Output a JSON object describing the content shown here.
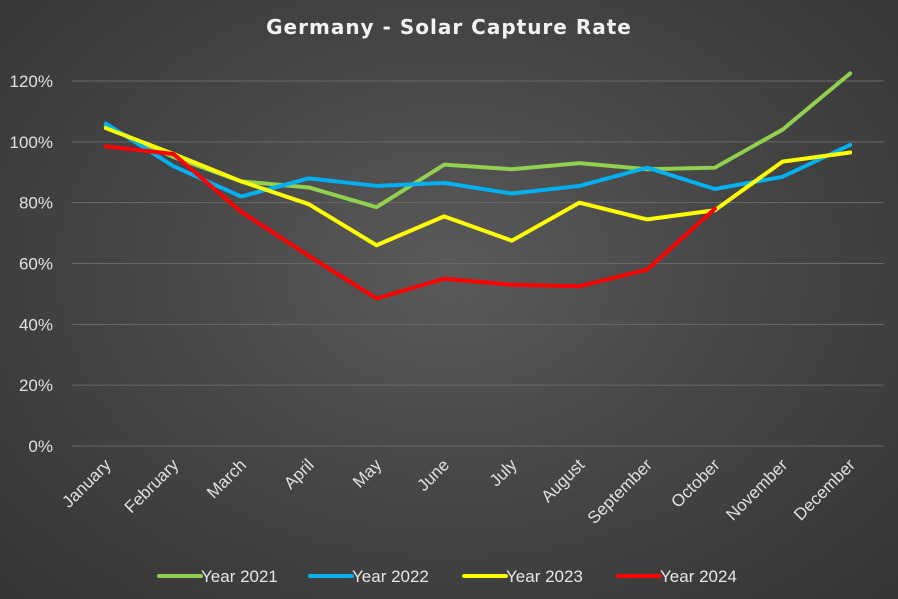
{
  "chart_data": {
    "type": "line",
    "title": "Germany - Solar Capture Rate",
    "xlabel": "",
    "ylabel": "",
    "ylim": [
      0,
      1.2
    ],
    "yticks": [
      0,
      0.2,
      0.4,
      0.6,
      0.8,
      1.0,
      1.2
    ],
    "ytick_labels": [
      "0%",
      "20%",
      "40%",
      "60%",
      "80%",
      "100%",
      "120%"
    ],
    "categories": [
      "January",
      "February",
      "March",
      "April",
      "May",
      "June",
      "July",
      "August",
      "September",
      "October",
      "November",
      "December"
    ],
    "grid": true,
    "legend_position": "bottom",
    "series": [
      {
        "name": "Year 2021",
        "color": "#92d050",
        "values": [
          1.05,
          0.95,
          0.87,
          0.85,
          0.785,
          0.925,
          0.91,
          0.93,
          0.91,
          0.915,
          1.04,
          1.225
        ]
      },
      {
        "name": "Year 2022",
        "color": "#00b0f0",
        "values": [
          1.06,
          0.92,
          0.82,
          0.88,
          0.855,
          0.865,
          0.83,
          0.855,
          0.915,
          0.845,
          0.885,
          0.99
        ]
      },
      {
        "name": "Year 2023",
        "color": "#ffff00",
        "values": [
          1.045,
          0.96,
          0.87,
          0.795,
          0.66,
          0.755,
          0.675,
          0.8,
          0.745,
          0.775,
          0.935,
          0.965
        ]
      },
      {
        "name": "Year 2024",
        "color": "#ff0000",
        "values": [
          0.985,
          0.96,
          0.77,
          0.625,
          0.485,
          0.55,
          0.53,
          0.525,
          0.58,
          0.78,
          null,
          null
        ]
      }
    ]
  }
}
